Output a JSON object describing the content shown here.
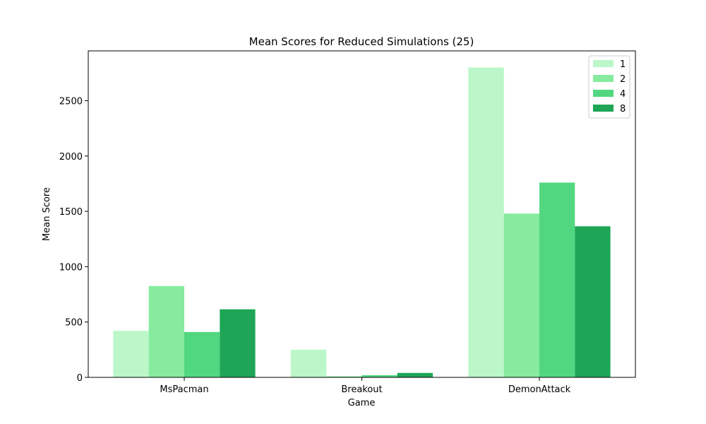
{
  "chart_data": {
    "type": "bar",
    "title": "Mean Scores for Reduced Simulations (25)",
    "xlabel": "Game",
    "ylabel": "Mean Score",
    "categories": [
      "MsPacman",
      "Breakout",
      "DemonAttack"
    ],
    "ylim": [
      0,
      2950
    ],
    "yticks": [
      0,
      500,
      1000,
      1500,
      2000,
      2500
    ],
    "grid": false,
    "legend_position": "top-right",
    "series": [
      {
        "name": "1",
        "color": "#bbf7c9",
        "values": [
          420,
          250,
          2800
        ]
      },
      {
        "name": "2",
        "color": "#86eb9e",
        "values": [
          825,
          10,
          1480
        ]
      },
      {
        "name": "4",
        "color": "#52d781",
        "values": [
          410,
          20,
          1760
        ]
      },
      {
        "name": "8",
        "color": "#1ea656",
        "values": [
          615,
          40,
          1365
        ]
      }
    ]
  }
}
